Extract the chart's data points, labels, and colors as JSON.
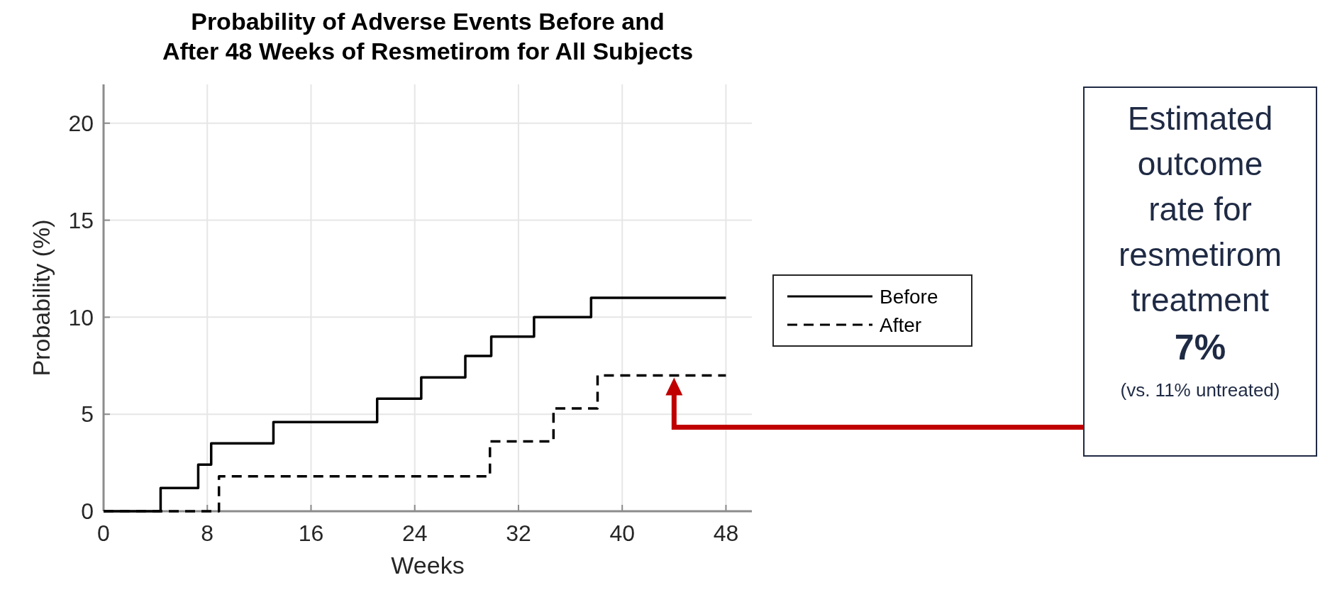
{
  "chart_data": {
    "type": "step",
    "title": "Probability of Adverse Events Before and\nAfter 48 Weeks of Resmetirom for All Subjects",
    "xlabel": "Weeks",
    "ylabel": "Probability (%)",
    "xlim": [
      0,
      50
    ],
    "xticks": [
      0,
      8,
      16,
      24,
      32,
      40,
      48
    ],
    "ylim": [
      0,
      22
    ],
    "yticks": [
      0,
      5,
      10,
      15,
      20
    ],
    "grid": true,
    "legend": "right",
    "series": [
      {
        "name": "Before",
        "color": "#000000",
        "line_style": "solid",
        "x": [
          0,
          4.4,
          7.3,
          8.3,
          13.1,
          21.1,
          24.5,
          27.9,
          29.9,
          33.2,
          37.6,
          48
        ],
        "values": [
          0,
          1.2,
          2.4,
          3.5,
          4.6,
          5.8,
          6.9,
          8.0,
          9.0,
          10.0,
          11.0,
          11.0
        ]
      },
      {
        "name": "After",
        "color": "#000000",
        "line_style": "dashed",
        "x": [
          0,
          8.9,
          29.8,
          34.7,
          38.1,
          48
        ],
        "values": [
          0,
          1.8,
          3.6,
          5.3,
          7.0,
          7.0
        ]
      }
    ],
    "annotations": [
      "Estimated outcome rate for resmetirom treatment",
      "7%",
      "(vs. 11% untreated)"
    ]
  }
}
